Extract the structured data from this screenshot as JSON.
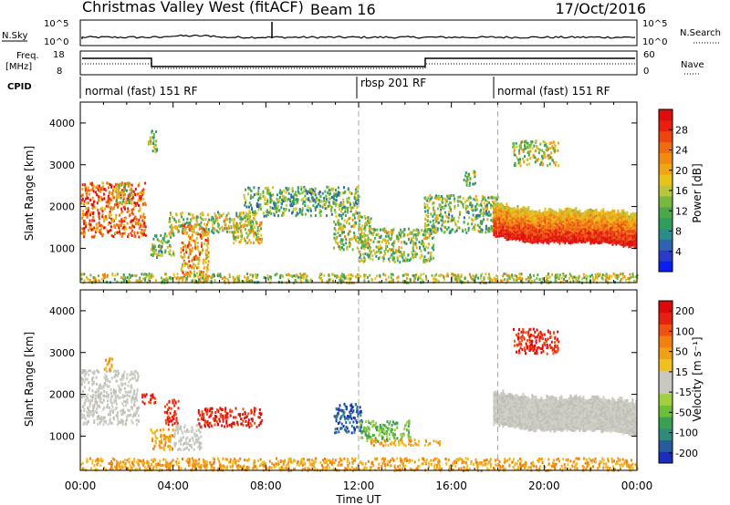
{
  "header": {
    "station": "Christmas Valley West (fitACF)",
    "beam": "Beam 16",
    "date": "17/Oct/2016"
  },
  "panels": {
    "nsky": {
      "label": "N.Sky",
      "ticks": [
        "10^5",
        "10^0"
      ]
    },
    "nsearch": {
      "label": "N.Search",
      "ticks": [
        "10^5",
        "10^0"
      ]
    },
    "freq": {
      "label_line1": "Freq.",
      "label_line2": "[MHz]",
      "ticks": [
        "18",
        "8"
      ]
    },
    "nave": {
      "label": "Nave",
      "ticks": [
        "60",
        "0"
      ]
    },
    "cpid": {
      "label": "CPID",
      "segments": [
        "normal (fast) 151 RF",
        "rbsp 201 RF",
        "normal (fast) 151 RF"
      ]
    }
  },
  "chart_data": [
    {
      "type": "heatmap",
      "panel": "power",
      "ylabel": "Slant Range [km]",
      "yticks": [
        1000,
        2000,
        3000,
        4000
      ],
      "ylim": [
        180,
        4500
      ],
      "xlim": [
        0,
        24
      ],
      "colorbar_label": "Power [dB]",
      "colorbar_ticks": [
        "4",
        "8",
        "12",
        "16",
        "20",
        "24",
        "28"
      ],
      "colorbar_colors": [
        "#0a1ef0",
        "#2a3bc8",
        "#2f62b3",
        "#2b8c8c",
        "#2f9e5c",
        "#4ca64a",
        "#78b83e",
        "#b9c63b",
        "#e8c41a",
        "#f2a513",
        "#f28a12",
        "#f06a10",
        "#ee4410",
        "#e81f10",
        "#e00c0c"
      ],
      "scatter_regions": [
        {
          "t0": 0.0,
          "t1": 2.8,
          "r0": 1300,
          "r1": 2600,
          "level": 0.8
        },
        {
          "t0": 1.5,
          "t1": 2.2,
          "r0": 2100,
          "r1": 2600,
          "level": 0.5
        },
        {
          "t0": 2.9,
          "t1": 3.3,
          "r0": 3300,
          "r1": 3850,
          "level": 0.4
        },
        {
          "t0": 3.0,
          "t1": 4.0,
          "r0": 800,
          "r1": 1400,
          "level": 0.4
        },
        {
          "t0": 3.8,
          "t1": 7.5,
          "r0": 1400,
          "r1": 1900,
          "level": 0.45
        },
        {
          "t0": 4.3,
          "t1": 5.5,
          "r0": 300,
          "r1": 1600,
          "level": 0.7
        },
        {
          "t0": 6.5,
          "t1": 7.8,
          "r0": 1150,
          "r1": 1700,
          "level": 0.55
        },
        {
          "t0": 10.9,
          "t1": 12.5,
          "r0": 1000,
          "r1": 1800,
          "level": 0.5
        },
        {
          "t0": 12.0,
          "t1": 15.2,
          "r0": 700,
          "r1": 1500,
          "level": 0.45
        },
        {
          "t0": 14.8,
          "t1": 18.0,
          "r0": 1400,
          "r1": 2300,
          "level": 0.4
        },
        {
          "t0": 16.5,
          "t1": 17.0,
          "r0": 2500,
          "r1": 2900,
          "level": 0.4
        },
        {
          "t0": 18.6,
          "t1": 20.6,
          "r0": 3000,
          "r1": 3600,
          "level": 0.5
        },
        {
          "t0": 7.0,
          "t1": 12.0,
          "r0": 1800,
          "r1": 2500,
          "level": 0.35
        },
        {
          "t0": 0.0,
          "t1": 24.0,
          "r0": 200,
          "r1": 420,
          "level": 0.5
        }
      ],
      "dense_regions": [
        {
          "t0": 17.8,
          "t1": 24.0,
          "r0": 1200,
          "r1": 2200,
          "level": 0.9
        }
      ]
    },
    {
      "type": "heatmap",
      "panel": "velocity",
      "ylabel": "Slant Range [km]",
      "yticks": [
        1000,
        2000,
        3000,
        4000
      ],
      "ylim": [
        180,
        4500
      ],
      "xlim": [
        0,
        24
      ],
      "xticks": [
        "00:00",
        "04:00",
        "08:00",
        "12:00",
        "16:00",
        "20:00",
        "00:00"
      ],
      "xlabel": "Time UT",
      "colorbar_label": "Velocity [m s⁻¹]",
      "colorbar_ticks": [
        "200",
        "100",
        "50",
        "15",
        "-15",
        "-50",
        "-100",
        "-200"
      ],
      "colorbar_colors": [
        "#1a2eb8",
        "#285aa0",
        "#2e8a7a",
        "#38a050",
        "#6cc038",
        "#a0d040",
        "#c8c8c0",
        "#c8c8c0",
        "#f0c020",
        "#f0a018",
        "#f08010",
        "#f05010",
        "#e82010",
        "#e00808"
      ],
      "scatter_regions": [
        {
          "t0": 0.0,
          "t1": 2.5,
          "r0": 1300,
          "r1": 2600,
          "kind": "grey"
        },
        {
          "t0": 1.0,
          "t1": 1.4,
          "r0": 2600,
          "r1": 2900,
          "kind": "orange"
        },
        {
          "t0": 2.6,
          "t1": 3.2,
          "r0": 1800,
          "r1": 2050,
          "kind": "red"
        },
        {
          "t0": 3.0,
          "t1": 4.0,
          "r0": 700,
          "r1": 1200,
          "kind": "orange"
        },
        {
          "t0": 3.6,
          "t1": 4.2,
          "r0": 1300,
          "r1": 1900,
          "kind": "red"
        },
        {
          "t0": 4.0,
          "t1": 5.2,
          "r0": 700,
          "r1": 1300,
          "kind": "grey"
        },
        {
          "t0": 5.0,
          "t1": 7.8,
          "r0": 1250,
          "r1": 1700,
          "kind": "red"
        },
        {
          "t0": 10.9,
          "t1": 12.1,
          "r0": 1100,
          "r1": 1800,
          "kind": "blue"
        },
        {
          "t0": 12.0,
          "t1": 14.2,
          "r0": 900,
          "r1": 1400,
          "kind": "green"
        },
        {
          "t0": 12.5,
          "t1": 15.5,
          "r0": 800,
          "r1": 950,
          "kind": "orange"
        },
        {
          "t0": 18.6,
          "t1": 20.6,
          "r0": 3000,
          "r1": 3600,
          "kind": "red"
        },
        {
          "t0": 0.0,
          "t1": 24.0,
          "r0": 200,
          "r1": 500,
          "kind": "orange"
        }
      ],
      "dense_regions": [
        {
          "t0": 17.8,
          "t1": 24.0,
          "r0": 1200,
          "r1": 2200,
          "kind": "grey"
        }
      ]
    }
  ]
}
